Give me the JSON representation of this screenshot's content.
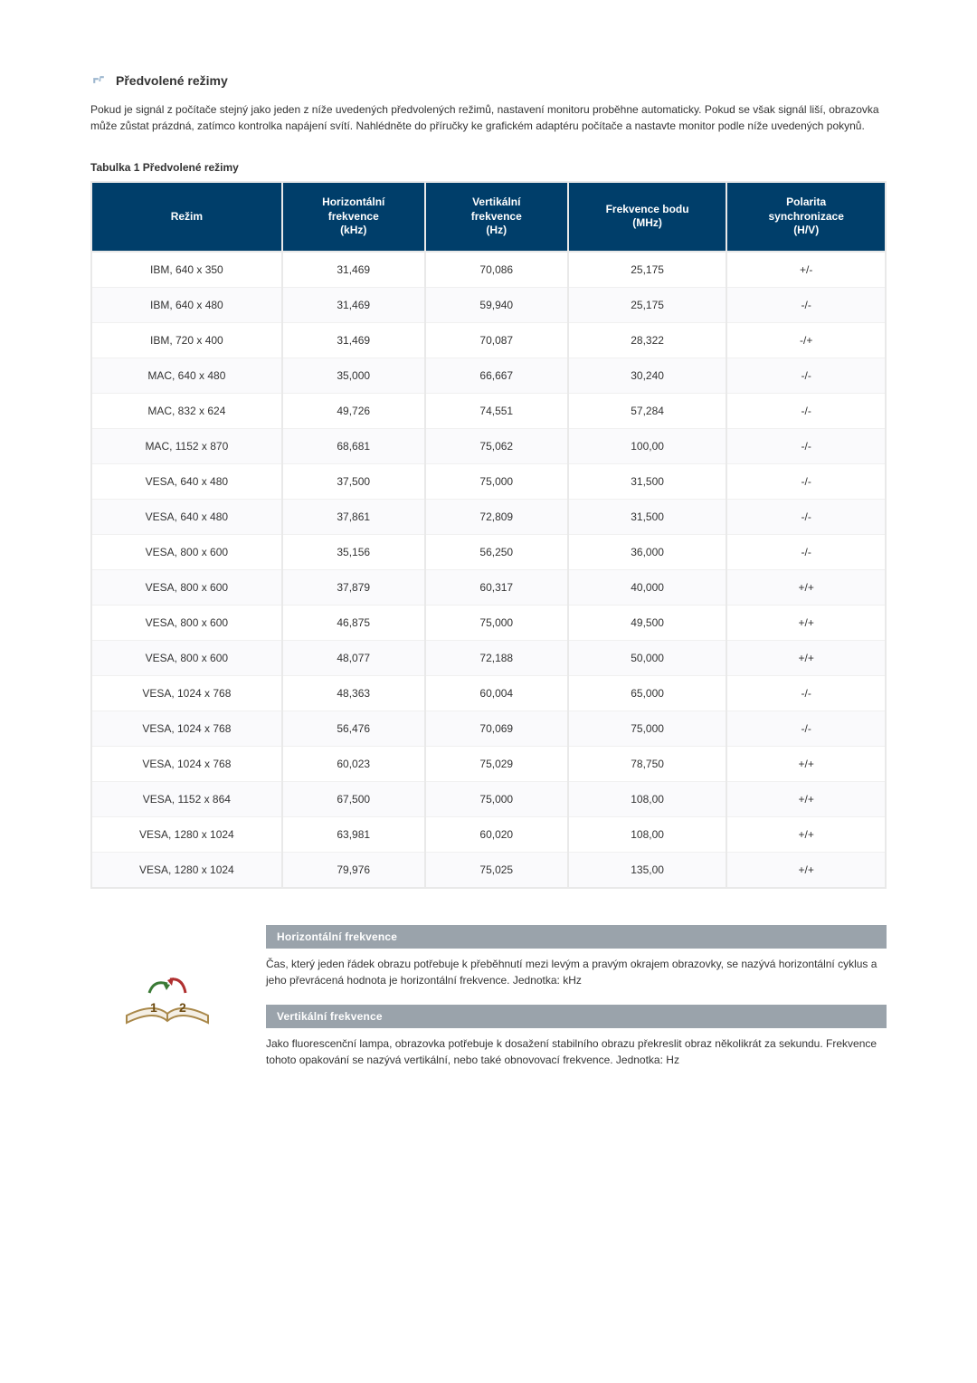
{
  "colors": {
    "header_bg": "#003e6a",
    "header_text": "#ffffff",
    "row_even_bg": "#fafafc",
    "row_odd_bg": "#ffffff",
    "border": "#e9e9e9",
    "def_bar_bg": "#9aa3ab",
    "text": "#333333"
  },
  "title": "Předvolené režimy",
  "intro": "Pokud je signál z počítače stejný jako jeden z níže uvedených předvolených režimů, nastavení monitoru proběhne automaticky. Pokud se však signál liší, obrazovka může zůstat prázdná, zatímco kontrolka napájení svítí. Nahlédněte do příručky ke grafickém adaptéru počítače a nastavte monitor podle níže uvedených pokynů.",
  "table_caption": "Tabulka 1 Předvolené režimy",
  "table": {
    "type": "table",
    "columns": [
      {
        "key": "mode",
        "label": "Režim",
        "width_class": "w-mode"
      },
      {
        "key": "hfreq",
        "label": "Horizontální\\nfrekvence\\n(kHz)",
        "width_class": "w-h"
      },
      {
        "key": "vfreq",
        "label": "Vertikální\\nfrekvence\\n(Hz)",
        "width_class": "w-v"
      },
      {
        "key": "pixel",
        "label": "Frekvence bodu\\n(MHz)",
        "width_class": "w-p"
      },
      {
        "key": "polarity",
        "label": "Polarita\\nsynchronizace\\n(H/V)",
        "width_class": "w-pol"
      }
    ],
    "rows": [
      {
        "mode": "IBM, 640 x 350",
        "hfreq": "31,469",
        "vfreq": "70,086",
        "pixel": "25,175",
        "polarity": "+/-"
      },
      {
        "mode": "IBM, 640 x 480",
        "hfreq": "31,469",
        "vfreq": "59,940",
        "pixel": "25,175",
        "polarity": "-/-"
      },
      {
        "mode": "IBM, 720 x 400",
        "hfreq": "31,469",
        "vfreq": "70,087",
        "pixel": "28,322",
        "polarity": "-/+"
      },
      {
        "mode": "MAC, 640 x 480",
        "hfreq": "35,000",
        "vfreq": "66,667",
        "pixel": "30,240",
        "polarity": "-/-"
      },
      {
        "mode": "MAC, 832 x 624",
        "hfreq": "49,726",
        "vfreq": "74,551",
        "pixel": "57,284",
        "polarity": "-/-"
      },
      {
        "mode": "MAC, 1152 x 870",
        "hfreq": "68,681",
        "vfreq": "75,062",
        "pixel": "100,00",
        "polarity": "-/-"
      },
      {
        "mode": "VESA, 640 x 480",
        "hfreq": "37,500",
        "vfreq": "75,000",
        "pixel": "31,500",
        "polarity": "-/-"
      },
      {
        "mode": "VESA, 640 x 480",
        "hfreq": "37,861",
        "vfreq": "72,809",
        "pixel": "31,500",
        "polarity": "-/-"
      },
      {
        "mode": "VESA, 800 x 600",
        "hfreq": "35,156",
        "vfreq": "56,250",
        "pixel": "36,000",
        "polarity": "-/-"
      },
      {
        "mode": "VESA, 800 x 600",
        "hfreq": "37,879",
        "vfreq": "60,317",
        "pixel": "40,000",
        "polarity": "+/+"
      },
      {
        "mode": "VESA, 800 x 600",
        "hfreq": "46,875",
        "vfreq": "75,000",
        "pixel": "49,500",
        "polarity": "+/+"
      },
      {
        "mode": "VESA, 800 x 600",
        "hfreq": "48,077",
        "vfreq": "72,188",
        "pixel": "50,000",
        "polarity": "+/+"
      },
      {
        "mode": "VESA, 1024 x 768",
        "hfreq": "48,363",
        "vfreq": "60,004",
        "pixel": "65,000",
        "polarity": "-/-"
      },
      {
        "mode": "VESA, 1024 x 768",
        "hfreq": "56,476",
        "vfreq": "70,069",
        "pixel": "75,000",
        "polarity": "-/-"
      },
      {
        "mode": "VESA, 1024 x 768",
        "hfreq": "60,023",
        "vfreq": "75,029",
        "pixel": "78,750",
        "polarity": "+/+"
      },
      {
        "mode": "VESA, 1152 x 864",
        "hfreq": "67,500",
        "vfreq": "75,000",
        "pixel": "108,00",
        "polarity": "+/+"
      },
      {
        "mode": "VESA, 1280 x 1024",
        "hfreq": "63,981",
        "vfreq": "60,020",
        "pixel": "108,00",
        "polarity": "+/+"
      },
      {
        "mode": "VESA, 1280 x 1024",
        "hfreq": "79,976",
        "vfreq": "75,025",
        "pixel": "135,00",
        "polarity": "+/+"
      }
    ]
  },
  "defs": [
    {
      "title": "Horizontální frekvence",
      "body": "Čas, který jeden řádek obrazu potřebuje k přeběhnutí mezi levým a pravým okrajem obrazovky, se nazývá horizontální cyklus a jeho převrácená hodnota je horizontální frekvence. Jednotka: kHz"
    },
    {
      "title": "Vertikální frekvence",
      "body": "Jako fluorescenční lampa, obrazovka potřebuje k dosažení stabilního obrazu překreslit obraz několikrát za sekundu. Frekvence tohoto opakování se nazývá vertikální, nebo také obnovovací frekvence. Jednotka: Hz"
    }
  ]
}
